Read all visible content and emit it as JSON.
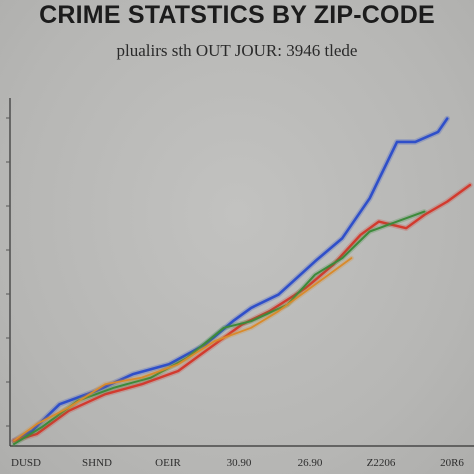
{
  "chart_data": {
    "type": "line",
    "title": "CRIME STATSTICS BY ZIP-CODE",
    "subtitle": "plualirs sth OUT JOUR: 3946 tlede",
    "xlabel": "",
    "ylabel": "",
    "categories": [
      "DUSD",
      "SHND",
      "OEIR",
      "30.90",
      "26.90",
      "Z2206",
      "20R6"
    ],
    "yticks": [
      "",
      "",
      "",
      "",
      "",
      "",
      "",
      ""
    ],
    "xlim": [
      0,
      1
    ],
    "ylim": [
      0,
      1
    ],
    "grid": false,
    "series": [
      {
        "color": "#2f4fc9",
        "width": 2.6,
        "x": [
          0.0,
          0.04,
          0.1,
          0.18,
          0.26,
          0.34,
          0.42,
          0.48,
          0.52,
          0.58,
          0.66,
          0.72,
          0.78,
          0.84,
          0.88,
          0.93,
          0.95
        ],
        "y": [
          0.01,
          0.04,
          0.12,
          0.16,
          0.21,
          0.24,
          0.3,
          0.37,
          0.41,
          0.45,
          0.55,
          0.62,
          0.74,
          0.91,
          0.91,
          0.94,
          0.98
        ]
      },
      {
        "color": "#d23a2e",
        "width": 2.4,
        "x": [
          0.0,
          0.05,
          0.12,
          0.2,
          0.28,
          0.36,
          0.44,
          0.5,
          0.56,
          0.64,
          0.7,
          0.76,
          0.8,
          0.86,
          0.9,
          0.95,
          1.0
        ],
        "y": [
          0.01,
          0.03,
          0.1,
          0.15,
          0.18,
          0.22,
          0.3,
          0.36,
          0.4,
          0.47,
          0.54,
          0.63,
          0.67,
          0.65,
          0.69,
          0.73,
          0.78
        ]
      },
      {
        "color": "#3c8a3a",
        "width": 2.0,
        "x": [
          0.0,
          0.06,
          0.14,
          0.22,
          0.3,
          0.38,
          0.46,
          0.52,
          0.6,
          0.66,
          0.72,
          0.78,
          0.84,
          0.9
        ],
        "y": [
          0.0,
          0.05,
          0.13,
          0.17,
          0.2,
          0.26,
          0.35,
          0.37,
          0.42,
          0.51,
          0.56,
          0.64,
          0.67,
          0.7
        ]
      },
      {
        "color": "#d98a2a",
        "width": 1.8,
        "x": [
          0.0,
          0.05,
          0.12,
          0.2,
          0.28,
          0.36,
          0.44,
          0.52,
          0.58,
          0.64,
          0.7,
          0.74
        ],
        "y": [
          0.01,
          0.06,
          0.11,
          0.18,
          0.2,
          0.24,
          0.31,
          0.35,
          0.4,
          0.46,
          0.52,
          0.56
        ]
      }
    ]
  }
}
